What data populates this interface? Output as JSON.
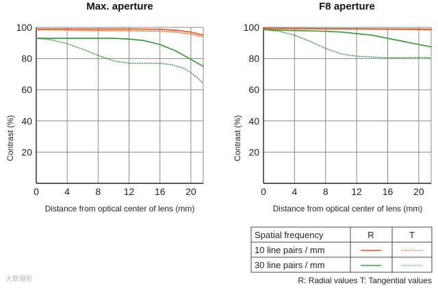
{
  "chart_data": [
    {
      "type": "line",
      "title": "Max. aperture",
      "xlabel": "Distance from optical center of lens (mm)",
      "ylabel": "Contrast (%)",
      "xlim": [
        0,
        21.6
      ],
      "ylim": [
        0,
        100
      ],
      "xticks": [
        "0",
        "4",
        "8",
        "12",
        "16",
        "20"
      ],
      "yticks": [
        "20",
        "40",
        "60",
        "80",
        "100"
      ],
      "grid": true,
      "series": [
        {
          "name": "10 line pairs / mm R",
          "style": "solid",
          "color": "#e8541e",
          "x": [
            0,
            4,
            8,
            12,
            16,
            18,
            20,
            21.6
          ],
          "y": [
            99,
            99,
            99,
            99,
            98.7,
            98.2,
            97,
            95
          ]
        },
        {
          "name": "10 line pairs / mm T",
          "style": "dotted",
          "color": "#e8541e",
          "x": [
            0,
            4,
            8,
            12,
            16,
            18,
            20,
            21.6
          ],
          "y": [
            98.5,
            98.3,
            98,
            97.8,
            97.5,
            97,
            95.7,
            94
          ]
        },
        {
          "name": "30 line pairs / mm R",
          "style": "solid",
          "color": "#3c9a3c",
          "x": [
            0,
            4,
            8,
            10,
            12,
            14,
            16,
            18,
            20,
            21.6
          ],
          "y": [
            93,
            93,
            93,
            93,
            92.5,
            91.5,
            89,
            85,
            79.5,
            75
          ]
        },
        {
          "name": "30 line pairs / mm T",
          "style": "dotted",
          "color": "#3c9a3c",
          "x": [
            0,
            2,
            4,
            6,
            8,
            10,
            12,
            14,
            16,
            17.5,
            19,
            20,
            21,
            21.6
          ],
          "y": [
            93,
            92,
            89.5,
            86,
            82,
            78.5,
            77,
            77,
            77,
            76,
            74,
            71,
            67,
            64
          ]
        }
      ]
    },
    {
      "type": "line",
      "title": "F8 aperture",
      "xlabel": "Distance from optical center of lens (mm)",
      "ylabel": "Contrast (%)",
      "xlim": [
        0,
        21.6
      ],
      "ylim": [
        0,
        100
      ],
      "xticks": [
        "0",
        "4",
        "8",
        "12",
        "16",
        "20"
      ],
      "yticks": [
        "20",
        "40",
        "60",
        "80",
        "100"
      ],
      "grid": true,
      "series": [
        {
          "name": "10 line pairs / mm R",
          "style": "solid",
          "color": "#e8541e",
          "x": [
            0,
            4,
            8,
            12,
            16,
            20,
            21.6
          ],
          "y": [
            99.4,
            99.3,
            99.2,
            99.1,
            99,
            98.9,
            98.8
          ]
        },
        {
          "name": "10 line pairs / mm T",
          "style": "dotted",
          "color": "#e8541e",
          "x": [
            0,
            4,
            8,
            12,
            16,
            20,
            21.6
          ],
          "y": [
            99.2,
            99.1,
            99,
            98.9,
            98.7,
            98.5,
            98.3
          ]
        },
        {
          "name": "30 line pairs / mm R",
          "style": "solid",
          "color": "#3c9a3c",
          "x": [
            0,
            4,
            8,
            10,
            12,
            14,
            16,
            18,
            20,
            21.6
          ],
          "y": [
            98.5,
            98,
            97.5,
            97,
            96,
            95,
            93,
            91,
            89,
            87.5
          ]
        },
        {
          "name": "30 line pairs / mm T",
          "style": "dotted",
          "color": "#3c9a3c",
          "x": [
            0,
            2,
            4,
            6,
            8,
            10,
            12,
            14,
            16,
            18,
            20,
            21.6
          ],
          "y": [
            98.5,
            97.5,
            95,
            91,
            86.5,
            83,
            81.5,
            81,
            80.5,
            80.5,
            80.7,
            80.5
          ]
        }
      ]
    }
  ],
  "legend": {
    "header_label": "Spatial frequency",
    "col_r": "R",
    "col_t": "T",
    "rows": [
      {
        "label": "10 line pairs / mm",
        "color": "#e8541e"
      },
      {
        "label": "30 line pairs / mm",
        "color": "#3c9a3c"
      }
    ]
  },
  "note": "R: Radial values  T: Tangential values",
  "watermark": "大数摄影",
  "colors": {
    "grid": "#888888",
    "axis": "#222222",
    "orange": "#e8541e",
    "green": "#3c9a3c"
  }
}
